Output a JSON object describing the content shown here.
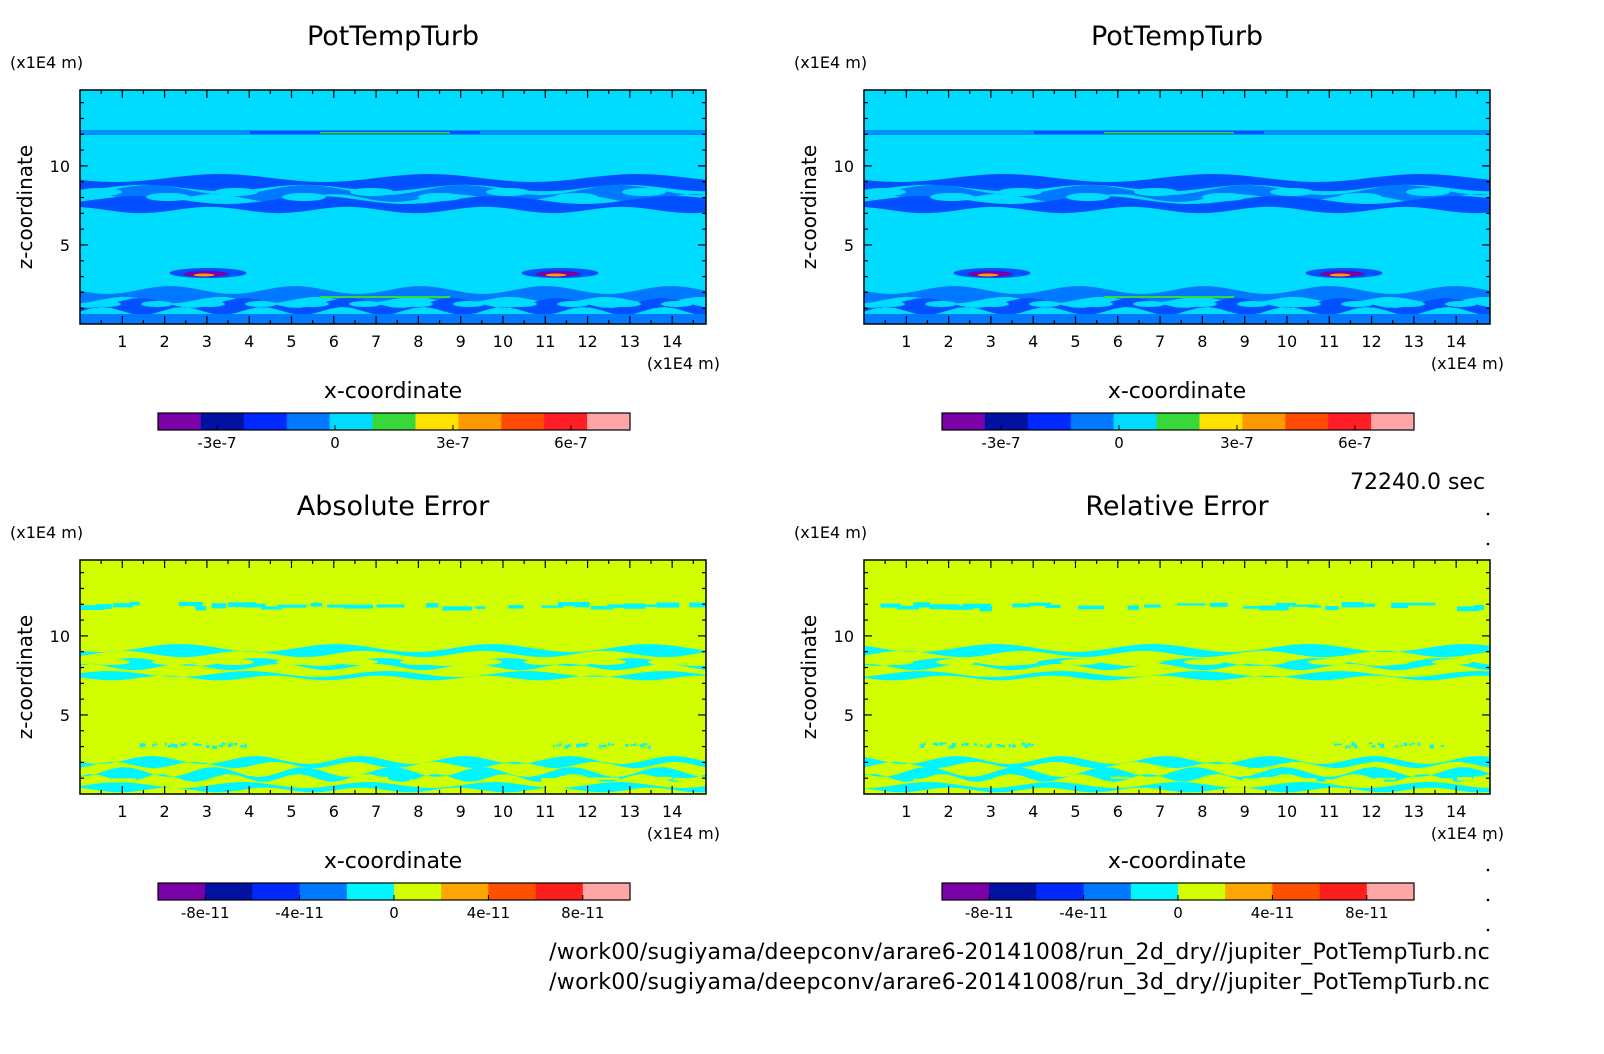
{
  "time_label": "72240.0 sec",
  "footer": {
    "line1": "/work00/sugiyama/deepconv/arare6-20141008/run_2d_dry//jupiter_PotTempTurb.nc",
    "line2": "/work00/sugiyama/deepconv/arare6-20141008/run_3d_dry//jupiter_PotTempTurb.nc"
  },
  "colors": {
    "field_cyan": "#00dcff",
    "error_bg": "#d2ff00",
    "error_cyan": "#00f5ff",
    "blue_band": "#0050ff"
  },
  "chart_data": [
    {
      "type": "heatmap",
      "title": "PotTempTurb",
      "xlabel": "x-coordinate",
      "ylabel": "z-coordinate",
      "x_unit": "(x1E4 m)",
      "y_unit": "(x1E4 m)",
      "xticks": [
        "1",
        "2",
        "3",
        "4",
        "5",
        "6",
        "7",
        "8",
        "9",
        "10",
        "11",
        "12",
        "13",
        "14"
      ],
      "yticks": [
        "5",
        "10"
      ],
      "xlim": [
        0,
        14.8
      ],
      "ylim": [
        0,
        14.8
      ],
      "variant": "field",
      "colorbar": {
        "colors": [
          "#7a00a8",
          "#0010a0",
          "#0028ff",
          "#0078ff",
          "#00dcff",
          "#38d83a",
          "#ffe100",
          "#ff9900",
          "#ff4a00",
          "#ff1e28",
          "#ffa5a5"
        ],
        "labels": [
          "-3e-7",
          "0",
          "3e-7",
          "6e-7"
        ],
        "label_values": [
          -3e-07,
          0,
          3e-07,
          6e-07
        ],
        "range": [
          -4.5e-07,
          7.5e-07
        ]
      }
    },
    {
      "type": "heatmap",
      "title": "PotTempTurb",
      "xlabel": "x-coordinate",
      "ylabel": "z-coordinate",
      "x_unit": "(x1E4 m)",
      "y_unit": "(x1E4 m)",
      "xticks": [
        "1",
        "2",
        "3",
        "4",
        "5",
        "6",
        "7",
        "8",
        "9",
        "10",
        "11",
        "12",
        "13",
        "14"
      ],
      "yticks": [
        "5",
        "10"
      ],
      "xlim": [
        0,
        14.8
      ],
      "ylim": [
        0,
        14.8
      ],
      "variant": "field",
      "colorbar": {
        "colors": [
          "#7a00a8",
          "#0010a0",
          "#0028ff",
          "#0078ff",
          "#00dcff",
          "#38d83a",
          "#ffe100",
          "#ff9900",
          "#ff4a00",
          "#ff1e28",
          "#ffa5a5"
        ],
        "labels": [
          "-3e-7",
          "0",
          "3e-7",
          "6e-7"
        ],
        "label_values": [
          -3e-07,
          0,
          3e-07,
          6e-07
        ],
        "range": [
          -4.5e-07,
          7.5e-07
        ]
      }
    },
    {
      "type": "heatmap",
      "title": "Absolute Error",
      "xlabel": "x-coordinate",
      "ylabel": "z-coordinate",
      "x_unit": "(x1E4 m)",
      "y_unit": "(x1E4 m)",
      "xticks": [
        "1",
        "2",
        "3",
        "4",
        "5",
        "6",
        "7",
        "8",
        "9",
        "10",
        "11",
        "12",
        "13",
        "14"
      ],
      "yticks": [
        "5",
        "10"
      ],
      "xlim": [
        0,
        14.8
      ],
      "ylim": [
        0,
        14.8
      ],
      "variant": "error",
      "colorbar": {
        "colors": [
          "#7a00a8",
          "#0010a0",
          "#0028ff",
          "#0078ff",
          "#00f5ff",
          "#d2ff00",
          "#ffa500",
          "#ff5000",
          "#ff1e1e",
          "#ffa5a5"
        ],
        "labels": [
          "-8e-11",
          "-4e-11",
          "0",
          "4e-11",
          "8e-11"
        ],
        "label_values": [
          -8e-11,
          -4e-11,
          0,
          4e-11,
          8e-11
        ],
        "range": [
          -1e-10,
          1e-10
        ]
      }
    },
    {
      "type": "heatmap",
      "title": "Relative Error",
      "xlabel": "x-coordinate",
      "ylabel": "z-coordinate",
      "x_unit": "(x1E4 m)",
      "y_unit": "(x1E4 m)",
      "xticks": [
        "1",
        "2",
        "3",
        "4",
        "5",
        "6",
        "7",
        "8",
        "9",
        "10",
        "11",
        "12",
        "13",
        "14"
      ],
      "yticks": [
        "5",
        "10"
      ],
      "xlim": [
        0,
        14.8
      ],
      "ylim": [
        0,
        14.8
      ],
      "variant": "error2",
      "colorbar": {
        "colors": [
          "#7a00a8",
          "#0010a0",
          "#0028ff",
          "#0078ff",
          "#00f5ff",
          "#d2ff00",
          "#ffa500",
          "#ff5000",
          "#ff1e1e",
          "#ffa5a5"
        ],
        "labels": [
          "-8e-11",
          "-4e-11",
          "0",
          "4e-11",
          "8e-11"
        ],
        "label_values": [
          -8e-11,
          -4e-11,
          0,
          4e-11,
          8e-11
        ],
        "range": [
          -1e-10,
          1e-10
        ]
      }
    }
  ]
}
